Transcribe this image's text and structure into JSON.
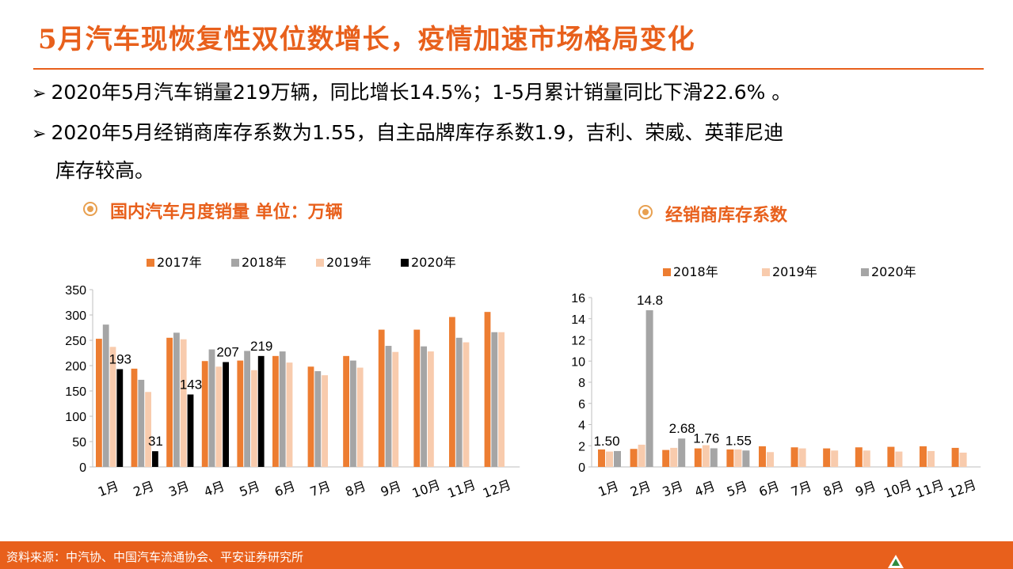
{
  "title": "5月汽车现恢复性双位数增长，疫情加速市场格局变化",
  "bullets": [
    "2020年5月汽车销量219万辆，同比增长14.5%；1-5月累计销量同比下滑22.6% 。",
    "2020年5月经销商库存系数为1.55，自主品牌库存系数1.9，吉利、荣威、英菲尼迪",
    "库存较高。"
  ],
  "bullet_marker": "➢",
  "subtitles": [
    "国内汽车月度销量  单位：万辆",
    "经销商库存系数"
  ],
  "colors": {
    "accent": "#E8601C",
    "s2017": "#ED7D31",
    "s2018": "#A5A5A5",
    "s2019": "#F8CBAD",
    "s2020": "#000000",
    "inv2018": "#ED7D31",
    "inv2019": "#F8CBAD",
    "inv2020": "#A5A5A5"
  },
  "chart_data": [
    {
      "type": "bar",
      "categories": [
        "1月",
        "2月",
        "3月",
        "4月",
        "5月",
        "6月",
        "7月",
        "8月",
        "9月",
        "10月",
        "11月",
        "12月"
      ],
      "series": [
        {
          "name": "2017年",
          "values": [
            253,
            194,
            255,
            209,
            210,
            219,
            198,
            219,
            271,
            271,
            296,
            306
          ]
        },
        {
          "name": "2018年",
          "values": [
            281,
            172,
            265,
            232,
            229,
            228,
            189,
            210,
            239,
            238,
            255,
            266
          ]
        },
        {
          "name": "2019年",
          "values": [
            237,
            148,
            252,
            198,
            191,
            206,
            181,
            196,
            227,
            228,
            246,
            266
          ]
        },
        {
          "name": "2020年",
          "values": [
            193,
            31,
            143,
            207,
            219,
            null,
            null,
            null,
            null,
            null,
            null,
            null
          ]
        }
      ],
      "data_labels": [
        "193",
        "31",
        "143",
        "207",
        "219"
      ],
      "yticks": [
        "0",
        "50",
        "100",
        "150",
        "200",
        "250",
        "300",
        "350"
      ],
      "ylim": [
        0,
        350
      ],
      "legend_position": "top"
    },
    {
      "type": "bar",
      "categories": [
        "1月",
        "2月",
        "3月",
        "4月",
        "5月",
        "6月",
        "7月",
        "8月",
        "9月",
        "10月",
        "11月",
        "12月"
      ],
      "series": [
        {
          "name": "2018年",
          "values": [
            1.65,
            1.7,
            1.6,
            1.75,
            1.65,
            1.95,
            1.85,
            1.75,
            1.85,
            1.9,
            1.95,
            1.8
          ]
        },
        {
          "name": "2019年",
          "values": [
            1.45,
            2.1,
            1.8,
            2.05,
            1.65,
            1.4,
            1.75,
            1.55,
            1.55,
            1.45,
            1.5,
            1.35
          ]
        },
        {
          "name": "2020年",
          "values": [
            1.5,
            14.8,
            2.68,
            1.76,
            1.55,
            null,
            null,
            null,
            null,
            null,
            null,
            null
          ]
        }
      ],
      "data_labels": [
        "1.50",
        "14.8",
        "2.68",
        "1.76",
        "1.55"
      ],
      "yticks": [
        "0",
        "2",
        "4",
        "6",
        "8",
        "10",
        "12",
        "14",
        "16"
      ],
      "ylim": [
        0,
        16
      ],
      "legend_position": "top"
    }
  ],
  "footer": "资料来源：中汽协、中国汽车流通协会、平安证券研究所"
}
